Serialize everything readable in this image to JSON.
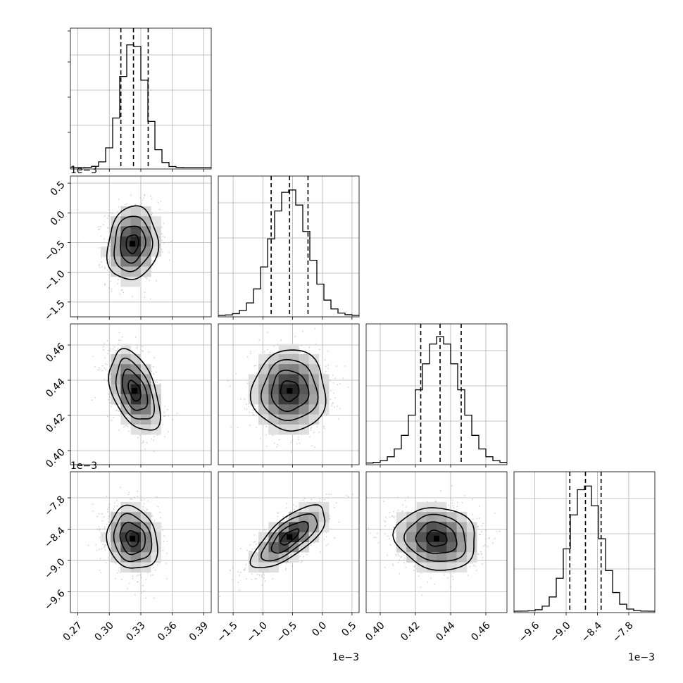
{
  "chart_data": {
    "type": "corner",
    "title": "",
    "grid": true,
    "parameters": [
      {
        "index": 0,
        "range": [
          0.263,
          0.397
        ],
        "ticks": [
          0.27,
          0.3,
          0.33,
          0.36,
          0.39
        ],
        "tick_labels": [
          "0.27",
          "0.30",
          "0.33",
          "0.36",
          "0.39"
        ],
        "scale_label": "",
        "quantiles": [
          0.311,
          0.323,
          0.337
        ],
        "mean": 0.323,
        "sd": 0.012
      },
      {
        "index": 1,
        "range": [
          -1.75,
          0.62
        ],
        "ticks": [
          -1.5,
          -1.0,
          -0.5,
          0.0,
          0.5
        ],
        "tick_labels": [
          "−1.5",
          "−1.0",
          "−0.5",
          "0.0",
          "0.5"
        ],
        "scale_label": "1e−3",
        "quantiles": [
          -0.86,
          -0.55,
          -0.24
        ],
        "mean": -0.55,
        "sd": 0.31
      },
      {
        "index": 2,
        "range": [
          0.392,
          0.472
        ],
        "ticks": [
          0.4,
          0.42,
          0.44,
          0.46
        ],
        "tick_labels": [
          "0.40",
          "0.42",
          "0.44",
          "0.46"
        ],
        "scale_label": "",
        "quantiles": [
          0.423,
          0.434,
          0.446
        ],
        "mean": 0.434,
        "sd": 0.0115
      },
      {
        "index": 3,
        "range": [
          -10.0,
          -7.3
        ],
        "ticks": [
          -9.6,
          -9.0,
          -8.4,
          -7.8
        ],
        "tick_labels": [
          "−9.6",
          "−9.0",
          "−8.4",
          "−7.8"
        ],
        "scale_label": "1e−3",
        "quantiles": [
          -8.93,
          -8.63,
          -8.33
        ],
        "mean": -8.63,
        "sd": 0.3
      }
    ],
    "pairs": [
      {
        "row": 1,
        "col": 0,
        "peak": [
          0.322,
          -0.52
        ],
        "correlation": 0.1
      },
      {
        "row": 2,
        "col": 0,
        "peak": [
          0.324,
          0.434
        ],
        "correlation": -0.45
      },
      {
        "row": 2,
        "col": 1,
        "peak": [
          -0.55,
          0.434
        ],
        "correlation": 0.0
      },
      {
        "row": 3,
        "col": 0,
        "peak": [
          0.322,
          -8.58
        ],
        "correlation": -0.15
      },
      {
        "row": 3,
        "col": 1,
        "peak": [
          -0.55,
          -8.55
        ],
        "correlation": 0.72
      },
      {
        "row": 3,
        "col": 2,
        "peak": [
          0.432,
          -8.58
        ],
        "correlation": -0.1
      }
    ],
    "contour_levels_sigma": [
      0.5,
      1.0,
      1.5,
      2.0
    ],
    "colors": {
      "line": "#000000",
      "grid": "#b0b0b0",
      "points": "#9a9a9a"
    }
  }
}
